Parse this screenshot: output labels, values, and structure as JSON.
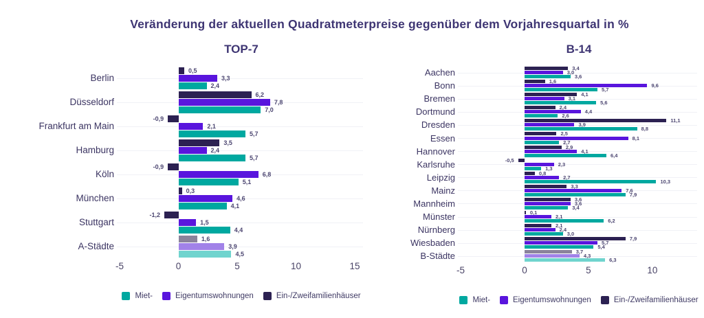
{
  "title": "Veränderung der aktuellen Quadratmeterpreise gegenüber dem Vorjahresquartal in %",
  "colors": {
    "teal": "#00a8a0",
    "purple": "#5915dd",
    "navy": "#2c2152",
    "muted_teal": "#70d4ce",
    "muted_purple": "#a182e8",
    "muted_gray": "#8b839b",
    "title_text": "#3e3573",
    "category_text": "#3b3462",
    "value_text": "#4c4671",
    "gridline": "#f0f1f6"
  },
  "legend": {
    "items": [
      {
        "key": "miet",
        "label": "Miet-",
        "color": "#00a8a0"
      },
      {
        "key": "eigentumswohnungen",
        "label": "Eigentumswohnungen",
        "color": "#5915dd"
      },
      {
        "key": "ein-zweifamilienhaeuser",
        "label": "Ein-/Zweifamilienhäuser",
        "color": "#2c2152"
      }
    ]
  },
  "chart_data": [
    {
      "type": "bar",
      "orientation": "horizontal",
      "title": "TOP-7",
      "categories": [
        "Berlin",
        "Düsseldorf",
        "Frankfurt am Main",
        "Hamburg",
        "Köln",
        "München",
        "Stuttgart",
        "A-Städte"
      ],
      "series": [
        {
          "key": "ein-zweifamilienhaeuser",
          "name": "Ein-/Zweifamilienhäuser",
          "color": "#2c2152",
          "muted_color": "#8b839b",
          "values": [
            0.5,
            6.2,
            -0.9,
            3.5,
            -0.9,
            0.3,
            -1.2,
            1.6
          ]
        },
        {
          "key": "eigentumswohnungen",
          "name": "Eigentumswohnungen",
          "color": "#5915dd",
          "muted_color": "#a182e8",
          "values": [
            3.3,
            7.8,
            2.1,
            2.4,
            6.8,
            4.6,
            1.5,
            3.9
          ]
        },
        {
          "key": "miet",
          "name": "Miet-",
          "color": "#00a8a0",
          "muted_color": "#70d4ce",
          "values": [
            2.4,
            7.0,
            5.7,
            5.7,
            5.1,
            4.1,
            4.4,
            4.5
          ]
        }
      ],
      "xticks": [
        -5,
        0,
        5,
        10,
        15
      ],
      "xlim": [
        -5,
        15.7
      ],
      "xlabel": "",
      "grid": "horizontal-per-category",
      "legend_position": "bottom",
      "muted_last_category": true,
      "value_labels": "on",
      "decimal_separator": ","
    },
    {
      "type": "bar",
      "orientation": "horizontal",
      "title": "B-14",
      "categories": [
        "Aachen",
        "Bonn",
        "Bremen",
        "Dortmund",
        "Dresden",
        "Essen",
        "Hannover",
        "Karlsruhe",
        "Leipzig",
        "Mainz",
        "Mannheim",
        "Münster",
        "Nürnberg",
        "Wiesbaden",
        "B-Städte"
      ],
      "series": [
        {
          "key": "ein-zweifamilienhaeuser",
          "name": "Ein-/Zweifamilienhäuser",
          "color": "#2c2152",
          "muted_color": "#8b839b",
          "values": [
            3.4,
            1.6,
            4.1,
            2.4,
            11.1,
            2.5,
            2.9,
            -0.5,
            0.8,
            3.3,
            3.6,
            0.1,
            2.1,
            7.9,
            3.7
          ]
        },
        {
          "key": "eigentumswohnungen",
          "name": "Eigentumswohnungen",
          "color": "#5915dd",
          "muted_color": "#a182e8",
          "values": [
            3.0,
            9.6,
            3.1,
            4.4,
            3.9,
            8.1,
            4.1,
            2.3,
            2.7,
            7.6,
            3.6,
            2.1,
            2.4,
            5.7,
            4.3
          ]
        },
        {
          "key": "miet",
          "name": "Miet-",
          "color": "#00a8a0",
          "muted_color": "#70d4ce",
          "values": [
            3.6,
            5.7,
            5.6,
            2.6,
            8.8,
            2.7,
            6.4,
            1.3,
            10.3,
            7.9,
            3.4,
            6.2,
            3.0,
            5.4,
            6.3
          ]
        }
      ],
      "xticks": [
        -5,
        0,
        5,
        10
      ],
      "xlim": [
        -5,
        13.5
      ],
      "xlabel": "",
      "grid": "horizontal-per-category",
      "legend_position": "bottom",
      "muted_last_category": true,
      "value_labels": "on",
      "decimal_separator": ","
    }
  ]
}
